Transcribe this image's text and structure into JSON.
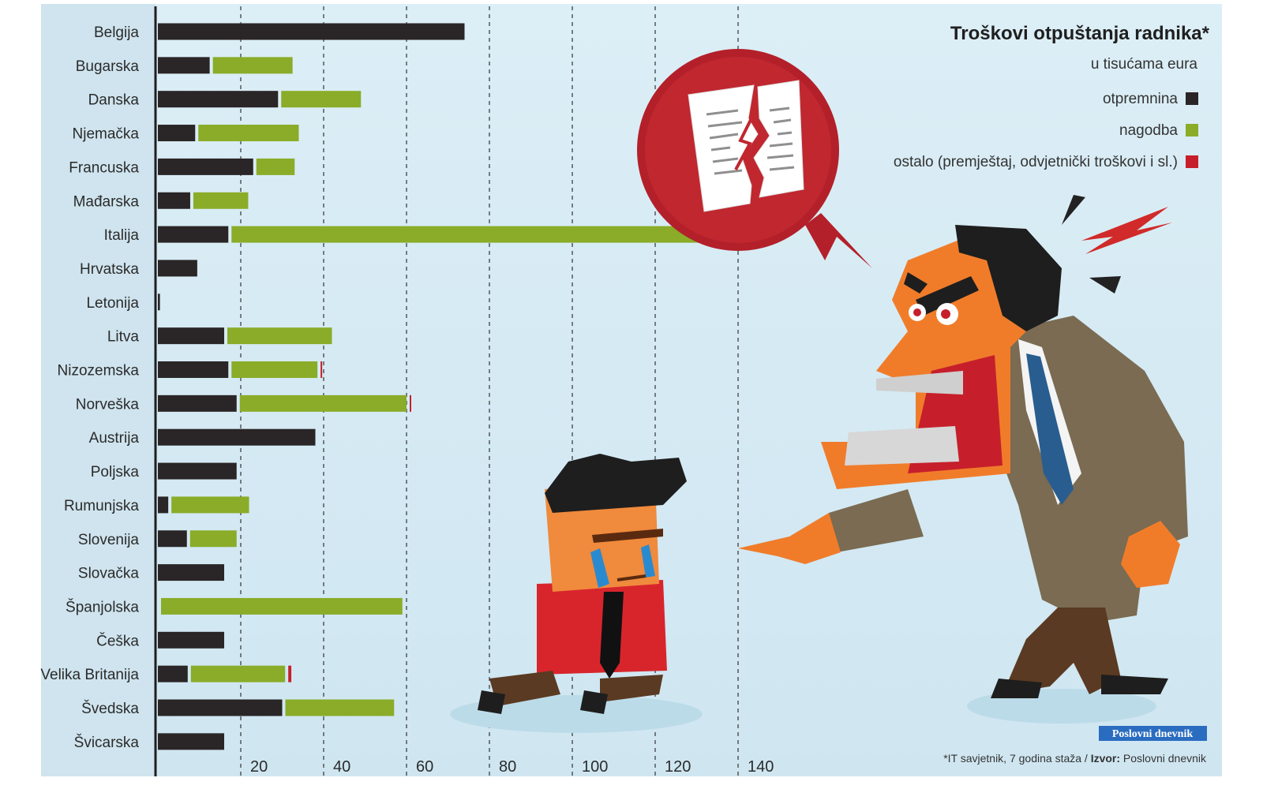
{
  "chart_data": {
    "type": "bar",
    "stacked": true,
    "orientation": "horizontal",
    "title": "Troškovi otpuštanja radnika*",
    "subtitle": "u tisućama eura",
    "categories": [
      "Belgija",
      "Bugarska",
      "Danska",
      "Njemačka",
      "Francuska",
      "Mađarska",
      "Italija",
      "Hrvatska",
      "Letonija",
      "Litva",
      "Nizozemska",
      "Norveška",
      "Austrija",
      "Poljska",
      "Rumunjska",
      "Slovenija",
      "Slovačka",
      "Španjolska",
      "Češka",
      "Velika Britanija",
      "Švedska",
      "Švicarska"
    ],
    "series": [
      {
        "name": "otpremnina",
        "color": "#2a2526",
        "values": [
          74,
          12.5,
          29,
          9,
          23,
          7.8,
          17,
          9.5,
          0.5,
          16,
          17,
          19,
          38,
          19,
          2.5,
          7,
          16,
          0,
          16,
          7.2,
          30,
          16
        ]
      },
      {
        "name": "nagodba",
        "color": "#8aac28",
        "values": [
          0,
          20,
          20,
          25,
          10,
          14,
          119,
          0,
          0,
          26,
          21.5,
          41,
          0,
          0,
          19.5,
          12,
          0,
          59,
          0,
          23.5,
          27,
          0
        ]
      },
      {
        "name": "ostalo (premještaj, odvjetnički troškovi i sl.)",
        "color": "#c61f2b",
        "values": [
          0,
          0,
          0,
          0,
          0,
          0,
          0,
          0,
          0,
          0,
          1,
          1,
          0,
          0,
          0,
          0,
          0,
          0,
          0,
          1.5,
          0,
          0
        ]
      }
    ],
    "xticks": [
      20,
      40,
      60,
      80,
      100,
      120,
      140
    ],
    "xlim": [
      0,
      145
    ],
    "grid": "vertical dashed"
  },
  "footnote": {
    "prefix": "*IT savjetnik, 7 godina staža / ",
    "source_label": "Izvor:",
    "source_value": " Poslovni dnevnik"
  },
  "brand": "Poslovni dnevnik"
}
